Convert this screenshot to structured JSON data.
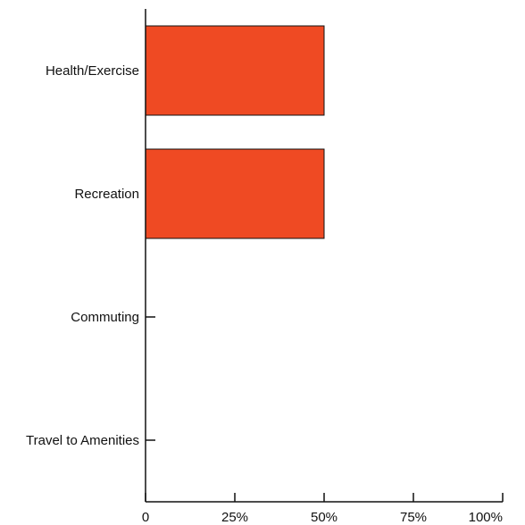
{
  "chart_data": {
    "type": "bar",
    "orientation": "horizontal",
    "categories": [
      "Health/Exercise",
      "Recreation",
      "Commuting",
      "Travel to Amenities"
    ],
    "values": [
      50,
      50,
      0,
      0
    ],
    "xlim": [
      0,
      100
    ],
    "x_ticks": [
      0,
      25,
      50,
      75,
      100
    ],
    "x_tick_labels": [
      "0",
      "25%",
      "50%",
      "75%",
      "100%"
    ],
    "title": "",
    "xlabel": "",
    "ylabel": "",
    "grid": false,
    "legend": "none",
    "bar_color": "#ef4a23",
    "axis_color": "#111111"
  }
}
